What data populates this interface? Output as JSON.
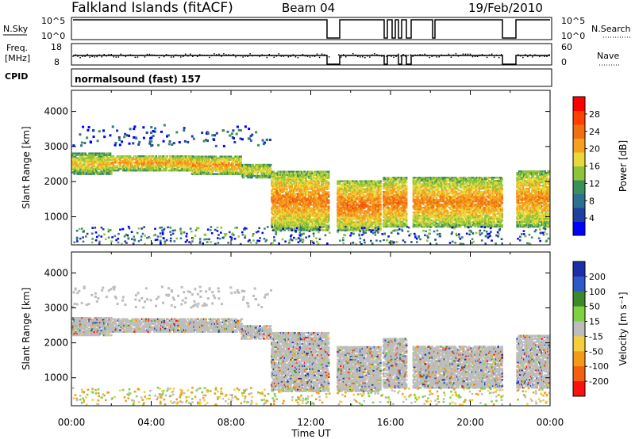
{
  "header": {
    "station": "Falkland Islands (fitACF)",
    "beam": "Beam 04",
    "date": "19/Feb/2010"
  },
  "small_panels": {
    "nsky_label": "N.Sky",
    "nsky_ticks": [
      "10^5",
      "10^0"
    ],
    "nsearch_label": "N.Search",
    "nsearch_ticks": [
      "10^5",
      "10^0"
    ],
    "freq_label": "Freq.",
    "freq_unit": "[MHz]",
    "freq_ticks": [
      "18",
      "8"
    ],
    "nave_label": "Nave",
    "nave_ticks": [
      "60",
      "0"
    ],
    "cpid_label": "CPID",
    "cpid_text": "normalsound (fast) 157"
  },
  "chart_data": [
    {
      "type": "heatmap",
      "name": "power-panel",
      "ylabel": "Slant Range [km]",
      "ylim": [
        200,
        4600
      ],
      "xlim": [
        0,
        24
      ],
      "y_ticks": [
        1000,
        2000,
        3000,
        4000
      ],
      "colorbar": {
        "label": "Power [dB]",
        "ticks": [
          "4",
          "8",
          "12",
          "16",
          "20",
          "24",
          "28"
        ],
        "colors": [
          "#0000ff",
          "#1f3f9f",
          "#2f6f8f",
          "#3a8f5a",
          "#8fc43a",
          "#e8d83a",
          "#f5a020",
          "#f07010",
          "#ff4000",
          "#ff0000"
        ]
      },
      "bands": [
        {
          "t0": 0.0,
          "t1": 2.0,
          "r0": 2200,
          "r1": 2800,
          "level": 0.62
        },
        {
          "t0": 2.0,
          "t1": 6.0,
          "r0": 2300,
          "r1": 2750,
          "level": 0.7
        },
        {
          "t0": 6.0,
          "t1": 8.5,
          "r0": 2200,
          "r1": 2700,
          "level": 0.72
        },
        {
          "t0": 8.5,
          "t1": 10.0,
          "r0": 2100,
          "r1": 2500,
          "level": 0.6
        },
        {
          "t0": 10.0,
          "t1": 12.9,
          "r0": 600,
          "r1": 2300,
          "level": 0.75
        },
        {
          "t0": 13.3,
          "t1": 15.5,
          "r0": 600,
          "r1": 2000,
          "level": 0.78
        },
        {
          "t0": 15.6,
          "t1": 16.8,
          "r0": 700,
          "r1": 2100,
          "level": 0.78
        },
        {
          "t0": 17.1,
          "t1": 21.6,
          "r0": 700,
          "r1": 2100,
          "level": 0.74
        },
        {
          "t0": 22.3,
          "t1": 24.0,
          "r0": 700,
          "r1": 2300,
          "level": 0.72
        }
      ]
    },
    {
      "type": "heatmap",
      "name": "velocity-panel",
      "ylabel": "Slant Range [km]",
      "ylim": [
        200,
        4600
      ],
      "xlim": [
        0,
        24
      ],
      "y_ticks": [
        1000,
        2000,
        3000,
        4000
      ],
      "colorbar": {
        "label": "Velocity [m s⁻¹]",
        "ticks": [
          "200",
          "100",
          "50",
          "15",
          "-15",
          "-50",
          "-100",
          "-200"
        ],
        "colors": [
          "#1c2ea8",
          "#2f58c8",
          "#3b8a2a",
          "#7ed140",
          "#bdbdbd",
          "#f4cf3a",
          "#f39a1a",
          "#f46010",
          "#ff1010"
        ]
      },
      "bands": [
        {
          "t0": 0.0,
          "t1": 2.0,
          "r0": 2200,
          "r1": 2700
        },
        {
          "t0": 2.0,
          "t1": 8.5,
          "r0": 2300,
          "r1": 2700
        },
        {
          "t0": 8.5,
          "t1": 10.0,
          "r0": 2100,
          "r1": 2500
        },
        {
          "t0": 10.0,
          "t1": 12.9,
          "r0": 600,
          "r1": 2300
        },
        {
          "t0": 13.3,
          "t1": 15.5,
          "r0": 600,
          "r1": 1900
        },
        {
          "t0": 15.6,
          "t1": 16.8,
          "r0": 700,
          "r1": 2100
        },
        {
          "t0": 17.1,
          "t1": 21.6,
          "r0": 700,
          "r1": 1900
        },
        {
          "t0": 22.3,
          "t1": 24.0,
          "r0": 700,
          "r1": 2200
        }
      ]
    }
  ],
  "x_axis": {
    "label": "Time UT",
    "ticks": [
      "00:00",
      "04:00",
      "08:00",
      "12:00",
      "16:00",
      "20:00",
      "00:00"
    ]
  }
}
